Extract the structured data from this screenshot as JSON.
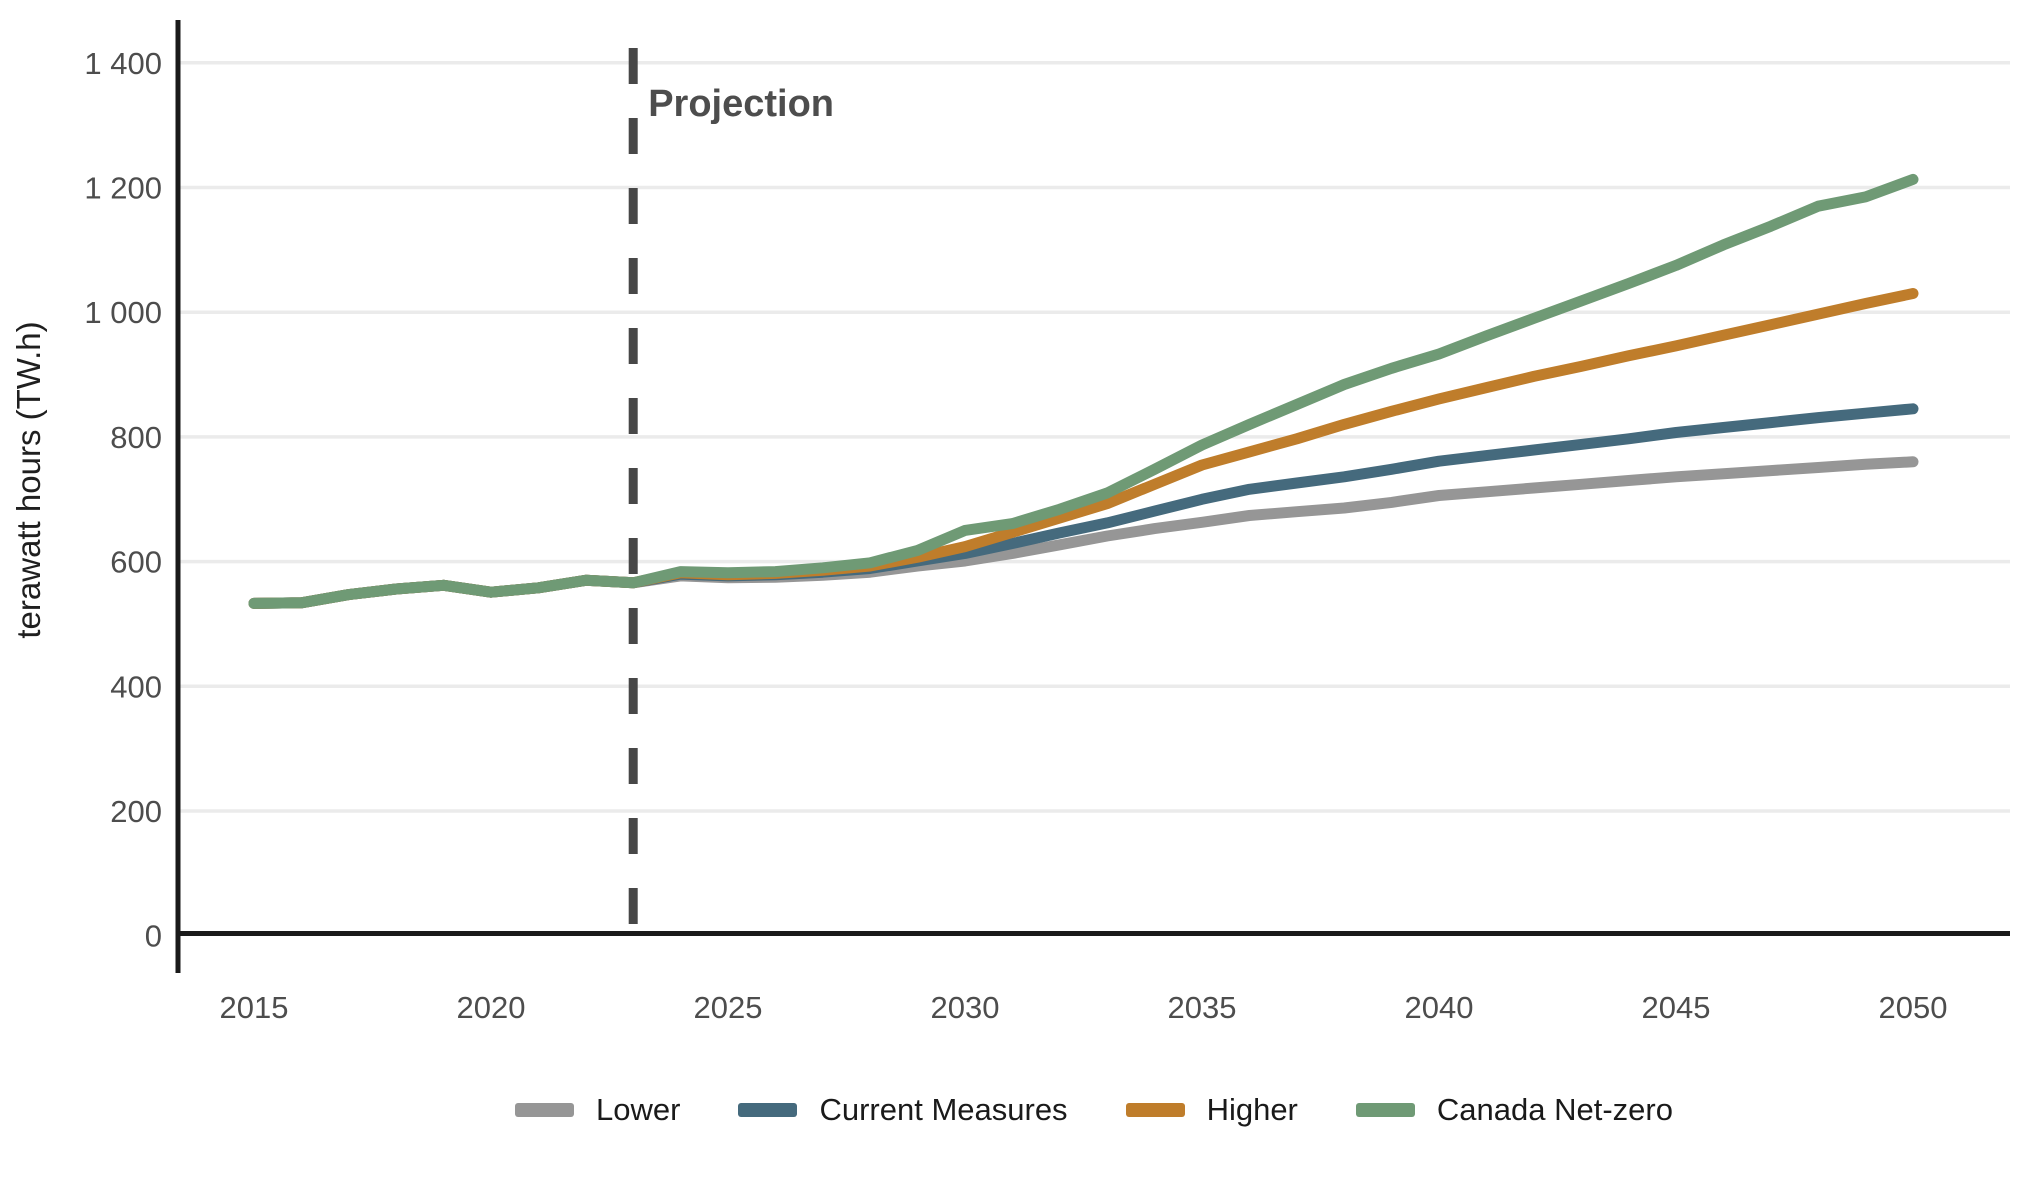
{
  "axes": {
    "y_title": "terawatt hours (TW.h)",
    "y_ticks": [
      {
        "v": 0,
        "label": "0"
      },
      {
        "v": 200,
        "label": "200"
      },
      {
        "v": 400,
        "label": "400"
      },
      {
        "v": 600,
        "label": "600"
      },
      {
        "v": 800,
        "label": "800"
      },
      {
        "v": 1000,
        "label": "1 000"
      },
      {
        "v": 1200,
        "label": "1 200"
      },
      {
        "v": 1400,
        "label": "1 400"
      }
    ],
    "x_ticks": [
      {
        "v": 2015,
        "label": "2015"
      },
      {
        "v": 2020,
        "label": "2020"
      },
      {
        "v": 2025,
        "label": "2025"
      },
      {
        "v": 2030,
        "label": "2030"
      },
      {
        "v": 2035,
        "label": "2035"
      },
      {
        "v": 2040,
        "label": "2040"
      },
      {
        "v": 2045,
        "label": "2045"
      },
      {
        "v": 2050,
        "label": "2050"
      }
    ]
  },
  "legend": {
    "items": [
      {
        "id": "lower",
        "label": "Lower",
        "color": "#969696"
      },
      {
        "id": "current-measures",
        "label": "Current Measures",
        "color": "#456a7d"
      },
      {
        "id": "higher",
        "label": "Higher",
        "color": "#bf7d2b"
      },
      {
        "id": "canada-net-zero",
        "label": "Canada Net-zero",
        "color": "#6f9a75"
      }
    ]
  },
  "colors": {
    "axis": "#1a1a1a",
    "grid": "#ebebeb",
    "tick_text": "#4d4d4d",
    "projection_line": "#474747",
    "projection_text": "#4d4d4d"
  },
  "chart_data": {
    "type": "line",
    "title": "",
    "xlabel": "",
    "ylabel": "terawatt hours (TW.h)",
    "ylim": [
      0,
      1400
    ],
    "xlim": [
      2013.4,
      2052
    ],
    "grid": "horizontal",
    "legend_position": "bottom",
    "annotations": [
      {
        "type": "vline",
        "x": 2023,
        "label": "Projection"
      }
    ],
    "x": [
      2015,
      2016,
      2017,
      2018,
      2019,
      2020,
      2021,
      2022,
      2023,
      2024,
      2025,
      2026,
      2027,
      2028,
      2029,
      2030,
      2031,
      2032,
      2033,
      2034,
      2035,
      2036,
      2037,
      2038,
      2039,
      2040,
      2041,
      2042,
      2043,
      2044,
      2045,
      2046,
      2047,
      2048,
      2049,
      2050
    ],
    "series": [
      {
        "name": "Lower",
        "color": "#969696",
        "values": [
          533,
          534,
          547,
          556,
          562,
          551,
          558,
          570,
          566,
          577,
          574,
          575,
          578,
          583,
          593,
          601,
          613,
          627,
          641,
          653,
          663,
          674,
          680,
          686,
          695,
          706,
          712,
          718,
          724,
          730,
          736,
          741,
          746,
          751,
          756,
          760
        ]
      },
      {
        "name": "Current Measures",
        "color": "#456a7d",
        "values": [
          533,
          534,
          547,
          556,
          562,
          551,
          558,
          570,
          566,
          580,
          577,
          579,
          583,
          589,
          601,
          613,
          629,
          646,
          662,
          681,
          700,
          716,
          726,
          736,
          748,
          761,
          770,
          779,
          788,
          797,
          807,
          815,
          823,
          831,
          838,
          845
        ]
      },
      {
        "name": "Higher",
        "color": "#bf7d2b",
        "values": [
          533,
          534,
          547,
          556,
          562,
          551,
          558,
          570,
          566,
          582,
          579,
          581,
          586,
          593,
          607,
          624,
          647,
          670,
          693,
          724,
          755,
          776,
          797,
          820,
          841,
          861,
          879,
          897,
          913,
          930,
          946,
          963,
          980,
          997,
          1014,
          1030
        ]
      },
      {
        "name": "Canada Net-zero",
        "color": "#6f9a75",
        "values": [
          533,
          534,
          547,
          556,
          562,
          551,
          558,
          570,
          566,
          584,
          582,
          584,
          590,
          598,
          618,
          650,
          661,
          684,
          710,
          748,
          787,
          820,
          852,
          884,
          910,
          933,
          962,
          990,
          1018,
          1046,
          1075,
          1108,
          1138,
          1170,
          1185,
          1213
        ]
      }
    ]
  }
}
